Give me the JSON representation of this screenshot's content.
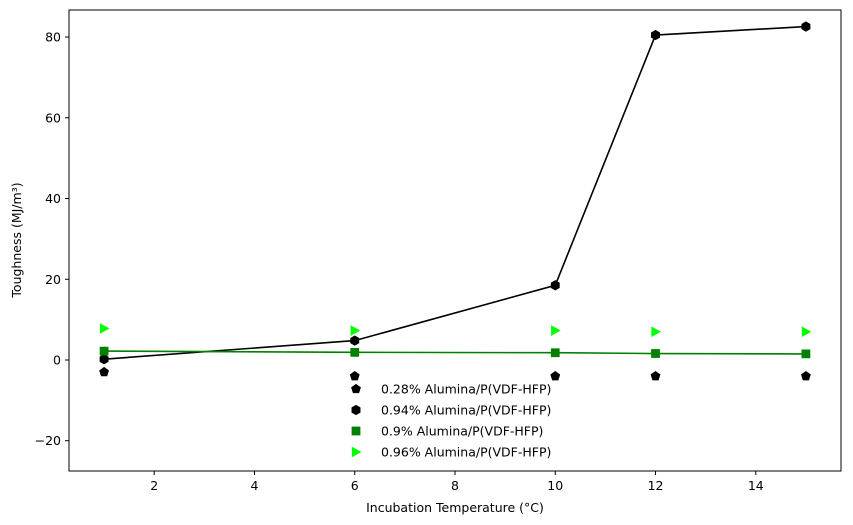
{
  "chart_data": {
    "type": "scatter",
    "title": "",
    "xlabel": "Incubation Temperature (°C)",
    "ylabel": "Toughness (MJ/m³)",
    "xlim": [
      0.3,
      15.7
    ],
    "ylim": [
      -27.5,
      86.7
    ],
    "xticks": [
      2,
      4,
      6,
      8,
      10,
      12,
      14
    ],
    "yticks": [
      -20,
      0,
      20,
      40,
      60,
      80
    ],
    "ytick_labels": [
      "−20",
      "0",
      "20",
      "40",
      "60",
      "80"
    ],
    "grid": false,
    "legend_position": "bottom-center",
    "series": [
      {
        "name": "0.28% Alumina/P(VDF-HFP)",
        "marker": "pentagon",
        "color": "#000000",
        "line": false,
        "x": [
          1,
          6,
          10,
          12,
          15
        ],
        "y": [
          -3,
          -4,
          -4,
          -4,
          -4
        ]
      },
      {
        "name": "0.94% Alumina/P(VDF-HFP)",
        "marker": "hexagon",
        "color": "#000000",
        "line": true,
        "x": [
          1,
          6,
          10,
          12,
          15
        ],
        "y": [
          0.2,
          4.8,
          18.5,
          80.5,
          82.6
        ]
      },
      {
        "name": "0.9% Alumina/P(VDF-HFP)",
        "marker": "square",
        "color": "#008000",
        "line": true,
        "x": [
          1,
          6,
          10,
          12,
          15
        ],
        "y": [
          2.2,
          1.9,
          1.8,
          1.6,
          1.5
        ]
      },
      {
        "name": "0.96% Alumina/P(VDF-HFP)",
        "marker": "triangle-right",
        "color": "#00ff00",
        "line": false,
        "x": [
          1,
          6,
          10,
          12,
          15
        ],
        "y": [
          7.8,
          7.3,
          7.3,
          7.0,
          7.0
        ]
      }
    ]
  }
}
